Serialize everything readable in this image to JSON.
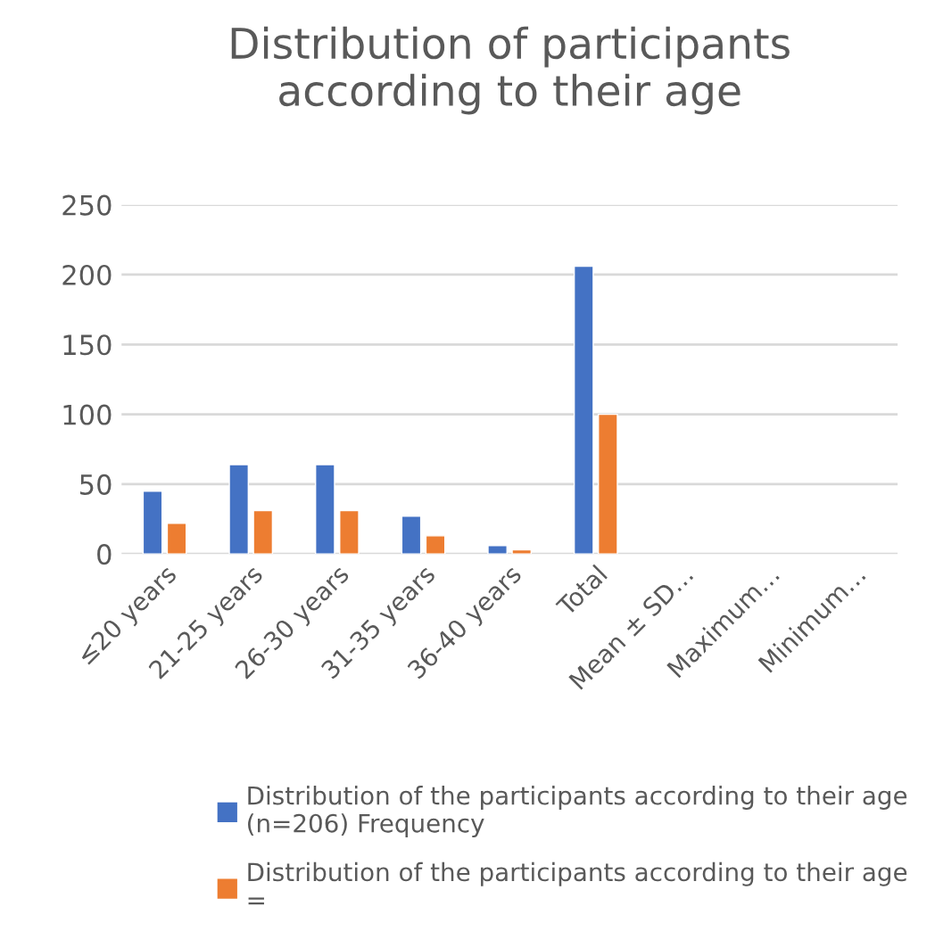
{
  "chart_data": {
    "type": "bar",
    "title": "Distribution of participants\naccording to their age",
    "categories": [
      "≤20 years",
      "21-25 years",
      "26-30 years",
      "31-35 years",
      "36-40 years",
      "Total",
      "Mean ± SD…",
      "Maximum…",
      "Minimum…"
    ],
    "series": [
      {
        "name": "Distribution of the participants according to their age\n(n=206) Frequency",
        "color": "#4472c4",
        "values": [
          45,
          64,
          64,
          27,
          6,
          206,
          null,
          null,
          null
        ]
      },
      {
        "name": "Distribution of the participants according to their age\n=",
        "color": "#ed7d31",
        "values": [
          22,
          31,
          31,
          13,
          3,
          100,
          null,
          null,
          null
        ]
      }
    ],
    "ylim": [
      0,
      250
    ],
    "yticks": [
      0,
      50,
      100,
      150,
      200,
      250
    ],
    "grid": "y",
    "legend": "bottom"
  }
}
